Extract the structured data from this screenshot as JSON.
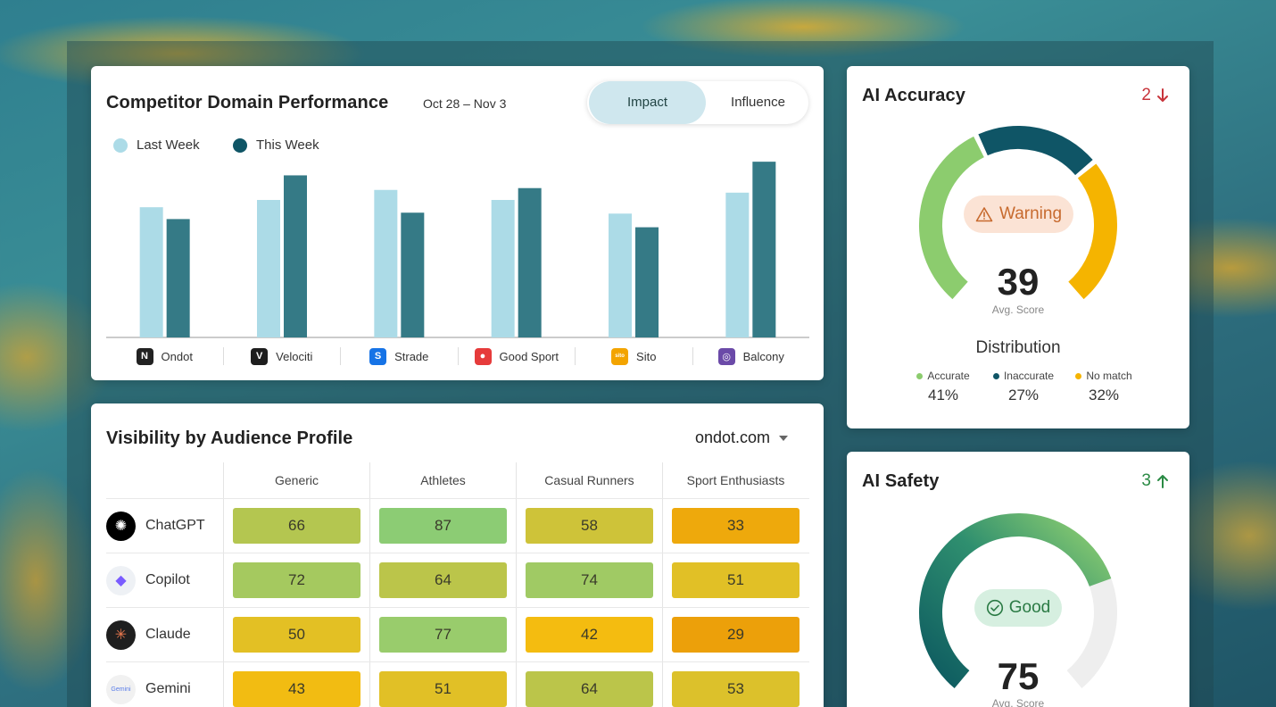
{
  "competitor": {
    "title": "Competitor Domain Performance",
    "date_range": "Oct 28 – Nov 3",
    "toggle": {
      "active": "Impact",
      "other": "Influence"
    },
    "legend": [
      {
        "label": "Last Week",
        "color": "#acdbe7"
      },
      {
        "label": "This Week",
        "color": "#0f5566"
      }
    ]
  },
  "chart_data": {
    "type": "bar",
    "categories": [
      "Ondot",
      "Velociti",
      "Strade",
      "Good Sport",
      "Sito",
      "Balcony"
    ],
    "series": [
      {
        "name": "Last Week",
        "values": [
          143,
          151,
          162,
          151,
          136,
          159
        ],
        "color": "#acdbe7"
      },
      {
        "name": "This Week",
        "values": [
          130,
          178,
          137,
          164,
          121,
          193
        ],
        "color": "#357a86"
      }
    ],
    "ylim": [
      0,
      200
    ],
    "grid": false,
    "legend": "top-left"
  },
  "brands": [
    {
      "name": "Ondot",
      "logo_icon": "ondot-logo-icon",
      "logo_text": "N",
      "color": "#222222"
    },
    {
      "name": "Velociti",
      "logo_icon": "velociti-logo-icon",
      "logo_text": "V",
      "color": "#1e1e1e"
    },
    {
      "name": "Strade",
      "logo_icon": "strade-logo-icon",
      "logo_text": "S",
      "color": "#1673e6"
    },
    {
      "name": "Good Sport",
      "logo_icon": "good-sport-logo-icon",
      "logo_text": "●",
      "color": "#e63b3b"
    },
    {
      "name": "Sito",
      "logo_icon": "sito-logo-icon",
      "logo_text": "sito",
      "color": "#f3a400"
    },
    {
      "name": "Balcony",
      "logo_icon": "balcony-logo-icon",
      "logo_text": "◎",
      "color": "#6b4aa8"
    }
  ],
  "visibility": {
    "title": "Visibility by Audience Profile",
    "domain": "ondot.com",
    "columns": [
      "Generic",
      "Athletes",
      "Casual Runners",
      "Sport Enthusiasts"
    ],
    "rows": [
      {
        "name": "ChatGPT",
        "icon": "chatgpt-icon",
        "glyph": "✺",
        "icon_color": "#000000",
        "values": [
          "66",
          "87",
          "58",
          "33"
        ]
      },
      {
        "name": "Copilot",
        "icon": "copilot-icon",
        "glyph": "◆",
        "icon_color": "#eef1f5",
        "values": [
          "72",
          "64",
          "74",
          "51"
        ]
      },
      {
        "name": "Claude",
        "icon": "claude-icon",
        "glyph": "✳",
        "icon_color": "#1f1f1f",
        "values": [
          "50",
          "77",
          "42",
          "29"
        ]
      },
      {
        "name": "Gemini",
        "icon": "gemini-icon",
        "glyph": "Gemini",
        "icon_color": "#f1f1f1",
        "values": [
          "43",
          "51",
          "64",
          "53"
        ]
      }
    ]
  },
  "accuracy": {
    "title": "AI Accuracy",
    "delta": "2",
    "delta_direction": "down",
    "delta_color": "#c8343b",
    "status": "Warning",
    "status_icon": "warning-icon",
    "score": "39",
    "score_label": "Avg. Score",
    "distribution_title": "Distribution",
    "distribution": [
      {
        "label": "Accurate",
        "value": "41%",
        "color": "#8ccc6e"
      },
      {
        "label": "Inaccurate",
        "value": "27%",
        "color": "#0f5566"
      },
      {
        "label": "No match",
        "value": "32%",
        "color": "#f5b400"
      }
    ]
  },
  "safety": {
    "title": "AI Safety",
    "delta": "3",
    "delta_direction": "up",
    "delta_color": "#2a8a44",
    "status": "Good",
    "status_icon": "check-circle-icon",
    "score": "75",
    "score_label": "Avg. Score"
  }
}
